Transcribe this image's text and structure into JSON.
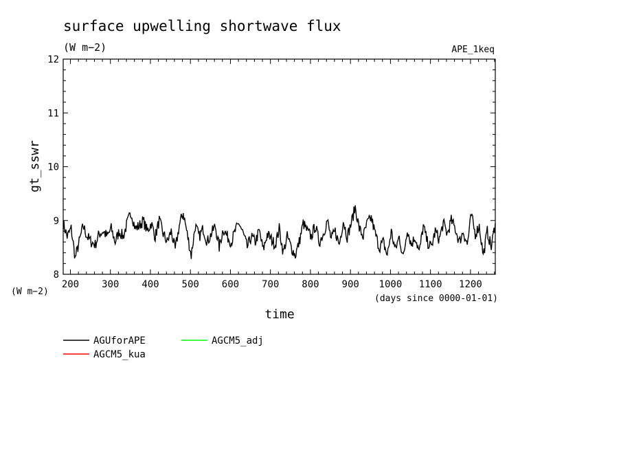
{
  "chart_data": {
    "type": "line",
    "title": "surface upwelling shortwave flux",
    "units": "(W m−2)",
    "experiment": "APE_1keq",
    "ylabel": "gt_sswr",
    "y_unit_label": "(W m−2)",
    "xlabel": "time",
    "x_unit_label": "(days since 0000-01-01)",
    "xlim": [
      182,
      1262
    ],
    "ylim": [
      8,
      12
    ],
    "x_ticks": [
      "200",
      "300",
      "400",
      "500",
      "600",
      "700",
      "800",
      "900",
      "1000",
      "1100",
      "1200"
    ],
    "y_ticks": [
      "8",
      "9",
      "10",
      "11",
      "12"
    ],
    "grid": false,
    "legend_position": "bottom-left",
    "series": [
      {
        "name": "AGUforAPE",
        "color": "#000000",
        "x": [
          182,
          192,
          202,
          212,
          222,
          232,
          242,
          252,
          262,
          272,
          282,
          292,
          302,
          312,
          322,
          332,
          342,
          352,
          362,
          372,
          382,
          392,
          402,
          412,
          422,
          432,
          442,
          452,
          462,
          472,
          482,
          492,
          502,
          512,
          522,
          532,
          542,
          552,
          562,
          572,
          582,
          592,
          602,
          612,
          622,
          632,
          642,
          652,
          662,
          672,
          682,
          692,
          702,
          712,
          722,
          732,
          742,
          752,
          762,
          772,
          782,
          792,
          802,
          812,
          822,
          832,
          842,
          852,
          862,
          872,
          882,
          892,
          902,
          912,
          922,
          932,
          942,
          952,
          962,
          972,
          982,
          992,
          1002,
          1012,
          1022,
          1032,
          1042,
          1052,
          1062,
          1072,
          1082,
          1092,
          1102,
          1112,
          1122,
          1132,
          1142,
          1152,
          1162,
          1172,
          1182,
          1192,
          1202,
          1212,
          1222,
          1232,
          1242,
          1252,
          1262
        ],
        "y": [
          8.95,
          8.7,
          8.85,
          8.3,
          8.6,
          8.9,
          8.7,
          8.6,
          8.55,
          8.75,
          8.8,
          8.7,
          8.85,
          8.6,
          8.8,
          8.7,
          8.95,
          9.15,
          8.85,
          8.9,
          9.0,
          8.8,
          8.95,
          8.7,
          9.0,
          8.75,
          8.6,
          8.8,
          8.45,
          8.9,
          9.15,
          8.75,
          8.35,
          8.9,
          8.7,
          8.85,
          8.6,
          8.75,
          8.9,
          8.5,
          8.85,
          8.7,
          8.6,
          8.8,
          8.95,
          8.75,
          8.5,
          8.7,
          8.6,
          8.8,
          8.45,
          8.75,
          8.65,
          8.55,
          8.85,
          8.4,
          8.7,
          8.5,
          8.35,
          8.6,
          8.95,
          8.8,
          8.7,
          8.9,
          8.6,
          8.75,
          9.0,
          8.65,
          8.8,
          8.55,
          9.0,
          8.7,
          8.95,
          9.25,
          8.85,
          8.7,
          8.95,
          9.05,
          8.75,
          8.5,
          8.6,
          8.35,
          8.8,
          8.45,
          8.7,
          8.3,
          8.85,
          8.55,
          8.7,
          8.4,
          8.9,
          8.6,
          8.5,
          8.8,
          8.65,
          8.95,
          8.75,
          9.0,
          8.85,
          8.6,
          8.8,
          8.55,
          9.1,
          8.75,
          8.9,
          8.35,
          8.8,
          8.5,
          8.95
        ]
      },
      {
        "name": "AGCM5_kua",
        "color": "#ff0000"
      },
      {
        "name": "AGCM5_adj",
        "color": "#00ff00"
      }
    ]
  }
}
